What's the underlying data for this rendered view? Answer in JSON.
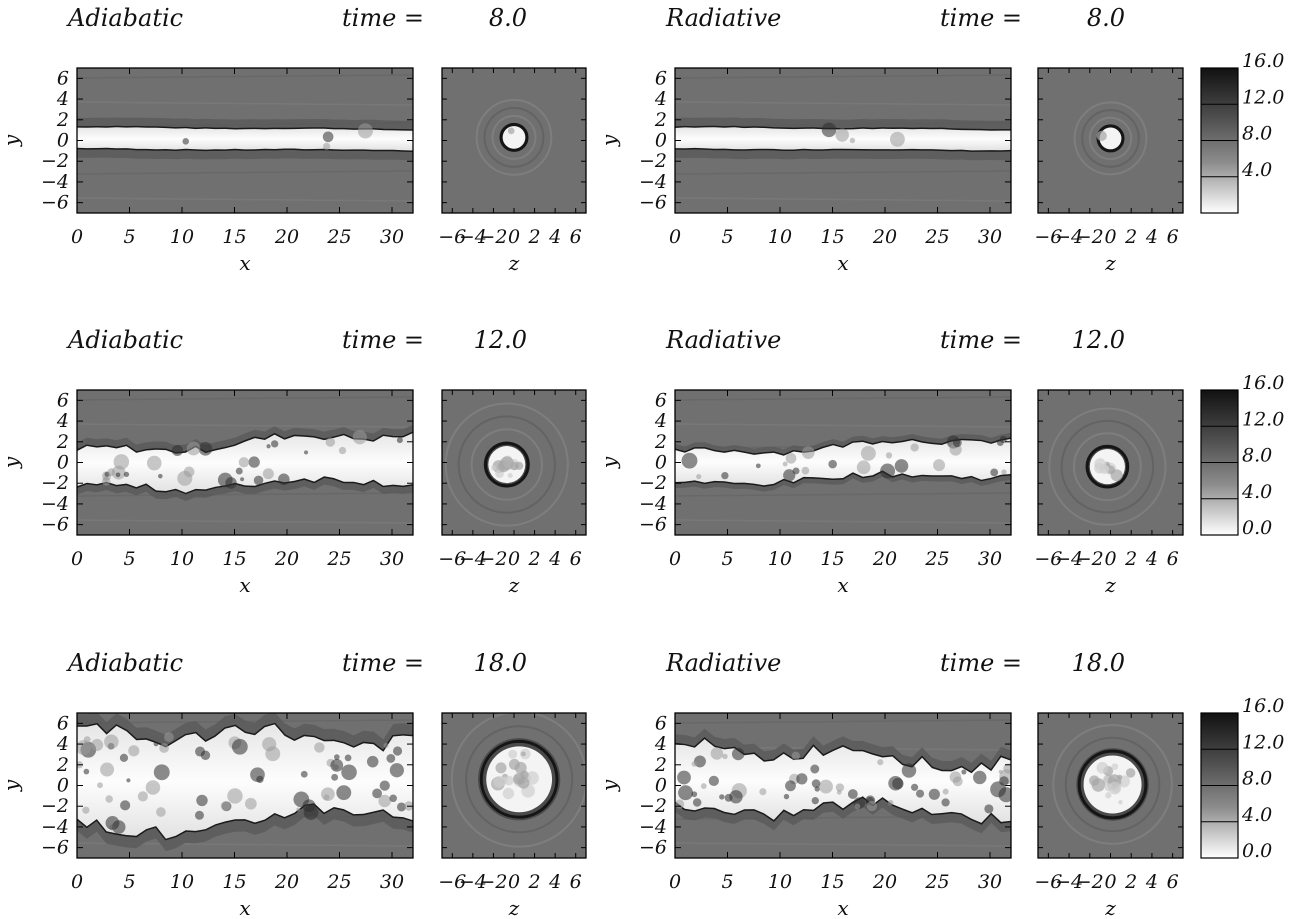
{
  "chart_data": {
    "type": "heatmap",
    "rows": [
      {
        "time_label": "time =",
        "time": "8.0",
        "colorbar": {
          "min": 0,
          "max": 16,
          "ticks": [
            "4.0",
            "8.0",
            "12.0",
            "16.0"
          ]
        },
        "panels": [
          {
            "model": "Adiabatic",
            "jet_halfwidth": [
              1.0,
              0.95
            ],
            "jet_center": [
              0.25,
              0.05
            ],
            "turbulence": 0.05,
            "shock_offset": 0.95,
            "cross_radius": 1.1,
            "cross_x": 0.0,
            "cross_y": 0.3
          },
          {
            "model": "Radiative",
            "jet_halfwidth": [
              1.0,
              0.95
            ],
            "jet_center": [
              0.25,
              0.05
            ],
            "turbulence": 0.05,
            "shock_offset": 0.95,
            "cross_radius": 1.05,
            "cross_x": 0.0,
            "cross_y": 0.2
          }
        ]
      },
      {
        "time_label": "time =",
        "time": "12.0",
        "colorbar": {
          "min": 0,
          "max": 16,
          "ticks": [
            "0.0",
            "4.0",
            "8.0",
            "12.0",
            "16.0"
          ]
        },
        "panels": [
          {
            "model": "Adiabatic",
            "jet_halfwidth": [
              1.6,
              2.3
            ],
            "jet_center": [
              -0.8,
              0.6
            ],
            "turbulence": 0.45,
            "shock_offset": 0.8,
            "cross_radius": 1.8,
            "cross_x": -0.7,
            "cross_y": -0.2
          },
          {
            "model": "Radiative",
            "jet_halfwidth": [
              1.3,
              1.7
            ],
            "jet_center": [
              -0.6,
              0.7
            ],
            "turbulence": 0.35,
            "shock_offset": 0.6,
            "cross_radius": 1.7,
            "cross_x": -0.3,
            "cross_y": -0.4
          }
        ]
      },
      {
        "time_label": "time =",
        "time": "18.0",
        "colorbar": {
          "min": 0,
          "max": 16,
          "ticks": [
            "0.0",
            "4.0",
            "8.0",
            "12.0",
            "16.0"
          ]
        },
        "panels": [
          {
            "model": "Adiabatic",
            "jet_halfwidth": [
              5.0,
              3.2
            ],
            "jet_center": [
              0.3,
              1.0
            ],
            "turbulence": 0.95,
            "shock_offset": 1.2,
            "cross_radius": 3.2,
            "cross_x": 0.5,
            "cross_y": 0.6
          },
          {
            "model": "Radiative",
            "jet_halfwidth": [
              3.0,
              2.2
            ],
            "jet_center": [
              0.9,
              -0.2
            ],
            "turbulence": 0.8,
            "shock_offset": 1.0,
            "cross_radius": 2.8,
            "cross_x": 0.2,
            "cross_y": 0.1
          }
        ]
      }
    ],
    "x_axis": {
      "label": "x",
      "range": [
        0,
        32
      ],
      "ticks": [
        "0",
        "5",
        "10",
        "15",
        "20",
        "25",
        "30"
      ],
      "tick_values": [
        0,
        5,
        10,
        15,
        20,
        25,
        30
      ]
    },
    "y_axis": {
      "label": "y",
      "range": [
        -7,
        7
      ],
      "ticks": [
        "6",
        "4",
        "2",
        "0",
        "−2",
        "−4",
        "−6"
      ],
      "tick_values": [
        6,
        4,
        2,
        0,
        -2,
        -4,
        -6
      ]
    },
    "z_axis": {
      "label": "z",
      "range": [
        -7,
        7
      ],
      "ticks": [
        "−6",
        "−4",
        "−2",
        "0",
        "2",
        "4",
        "6"
      ],
      "tick_values": [
        -6,
        -4,
        -2,
        0,
        2,
        4,
        6
      ]
    },
    "grid": false,
    "colormap": "grayscale-inverted"
  }
}
